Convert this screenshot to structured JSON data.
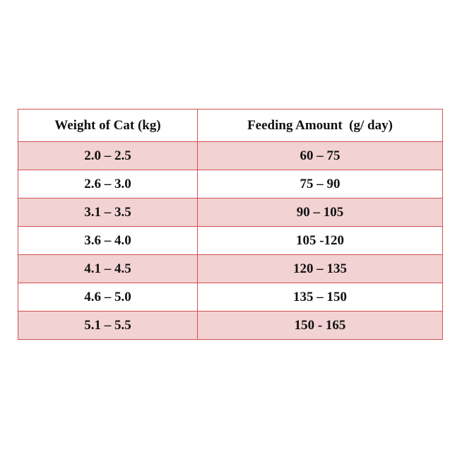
{
  "table": {
    "header": [
      "Weight of Cat (kg)",
      "Feeding Amount  (g/ day)"
    ],
    "rows": [
      [
        "2.0 – 2.5",
        "60 – 75"
      ],
      [
        "2.6 – 3.0",
        "75 – 90"
      ],
      [
        "3.1 – 3.5",
        "90 – 105"
      ],
      [
        "3.6 – 4.0",
        "105 -120"
      ],
      [
        "4.1 – 4.5",
        "120 – 135"
      ],
      [
        "4.6 – 5.0",
        "135 – 150"
      ],
      [
        "5.1 – 5.5",
        "150 - 165"
      ]
    ]
  }
}
